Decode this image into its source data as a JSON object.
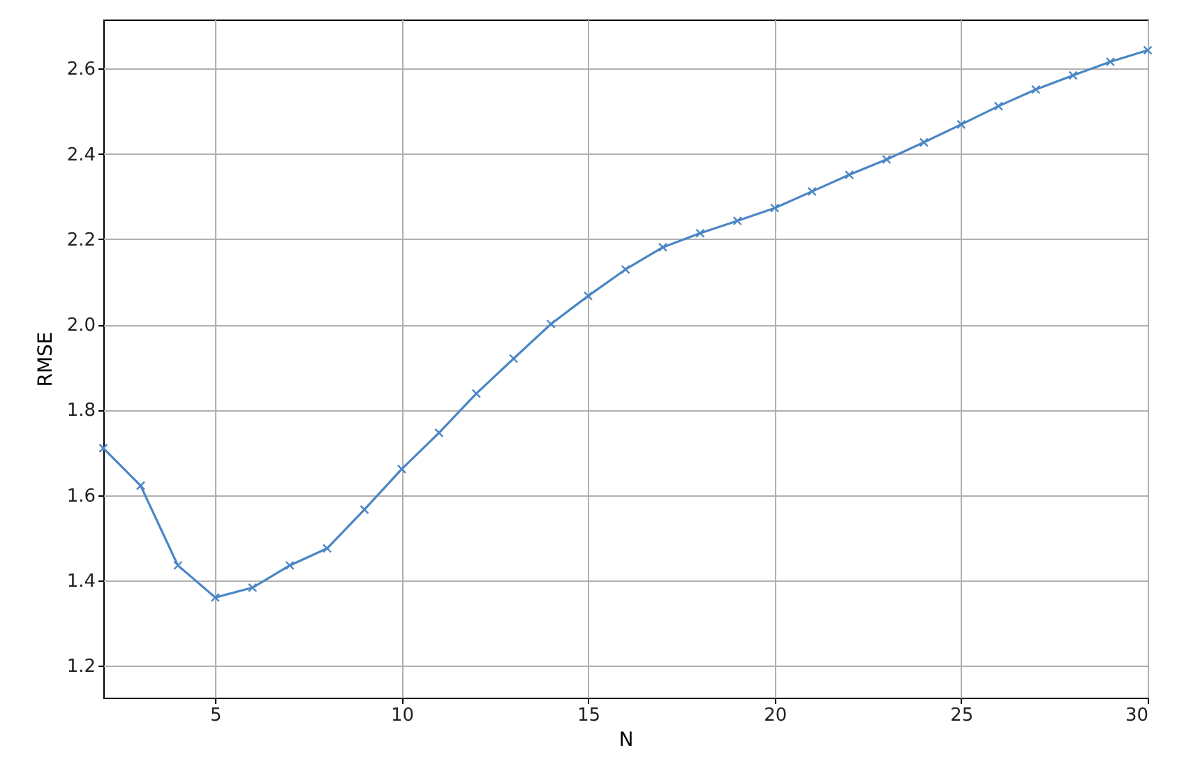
{
  "chart_data": {
    "type": "line",
    "xlabel": "N",
    "ylabel": "RMSE",
    "x": [
      2,
      3,
      4,
      5,
      6,
      7,
      8,
      9,
      10,
      11,
      12,
      13,
      14,
      15,
      16,
      17,
      18,
      19,
      20,
      21,
      22,
      23,
      24,
      25,
      26,
      27,
      28,
      29,
      30
    ],
    "series": [
      {
        "color": "#4a86c5",
        "values": [
          1.71,
          1.622,
          1.435,
          1.36,
          1.383,
          1.435,
          1.475,
          1.566,
          1.661,
          1.746,
          1.838,
          1.92,
          2.001,
          2.067,
          2.129,
          2.181,
          2.214,
          2.243,
          2.273,
          2.312,
          2.351,
          2.387,
          2.427,
          2.469,
          2.512,
          2.551,
          2.584,
          2.616,
          2.643
        ]
      }
    ],
    "xlim": [
      2,
      30
    ],
    "xticks": [
      5,
      10,
      15,
      20,
      25,
      30
    ],
    "ylim": [
      1.125,
      2.715
    ],
    "yticks": [
      1.2,
      1.4,
      1.6,
      1.8,
      {
        "value": 2,
        "label": "2.0"
      },
      2.2,
      2.4,
      2.6
    ],
    "grid": true,
    "marker": "cross",
    "line_style": "solid"
  }
}
